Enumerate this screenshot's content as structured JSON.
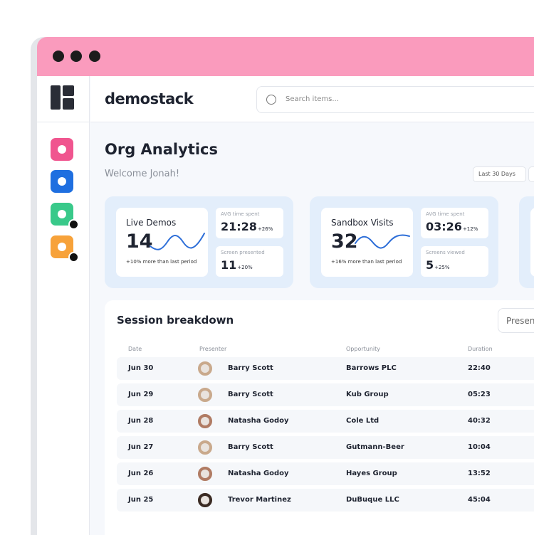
{
  "brand": "demostack",
  "search_placeholder": "Search items...",
  "page": {
    "title": "Org Analytics",
    "welcome": "Welcome Jonah!",
    "date_filter": "Last 30 Days"
  },
  "cards": [
    {
      "title": "Live Demos",
      "value": "14",
      "note": "+10% more than last period",
      "stats": [
        {
          "label": "AVG time spent",
          "value": "21:28",
          "change": "+26%"
        },
        {
          "label": "Screen presented",
          "value": "11",
          "change": "+20%"
        }
      ]
    },
    {
      "title": "Sandbox Visits",
      "value": "32",
      "note": "+16% more than last period",
      "stats": [
        {
          "label": "AVG time spent",
          "value": "03:26",
          "change": "+12%"
        },
        {
          "label": "Screens viewed",
          "value": "5",
          "change": "+25%"
        }
      ]
    }
  ],
  "table": {
    "title": "Session breakdown",
    "button": "Presen",
    "columns": [
      "Date",
      "Presenter",
      "Opportunity",
      "Duration"
    ],
    "rows": [
      [
        "Jun 30",
        "Barry Scott",
        "Barrows PLC",
        "22:40"
      ],
      [
        "Jun 29",
        "Barry Scott",
        "Kub Group",
        "05:23"
      ],
      [
        "Jun 28",
        "Natasha Godoy",
        "Cole Ltd",
        "40:32"
      ],
      [
        "Jun 27",
        "Barry Scott",
        "Gutmann-Beer",
        "10:04"
      ],
      [
        "Jun 26",
        "Natasha Godoy",
        "Hayes Group",
        "13:52"
      ],
      [
        "Jun 25",
        "Trevor Martinez",
        "DuBuque LLC",
        "45:04"
      ]
    ]
  }
}
